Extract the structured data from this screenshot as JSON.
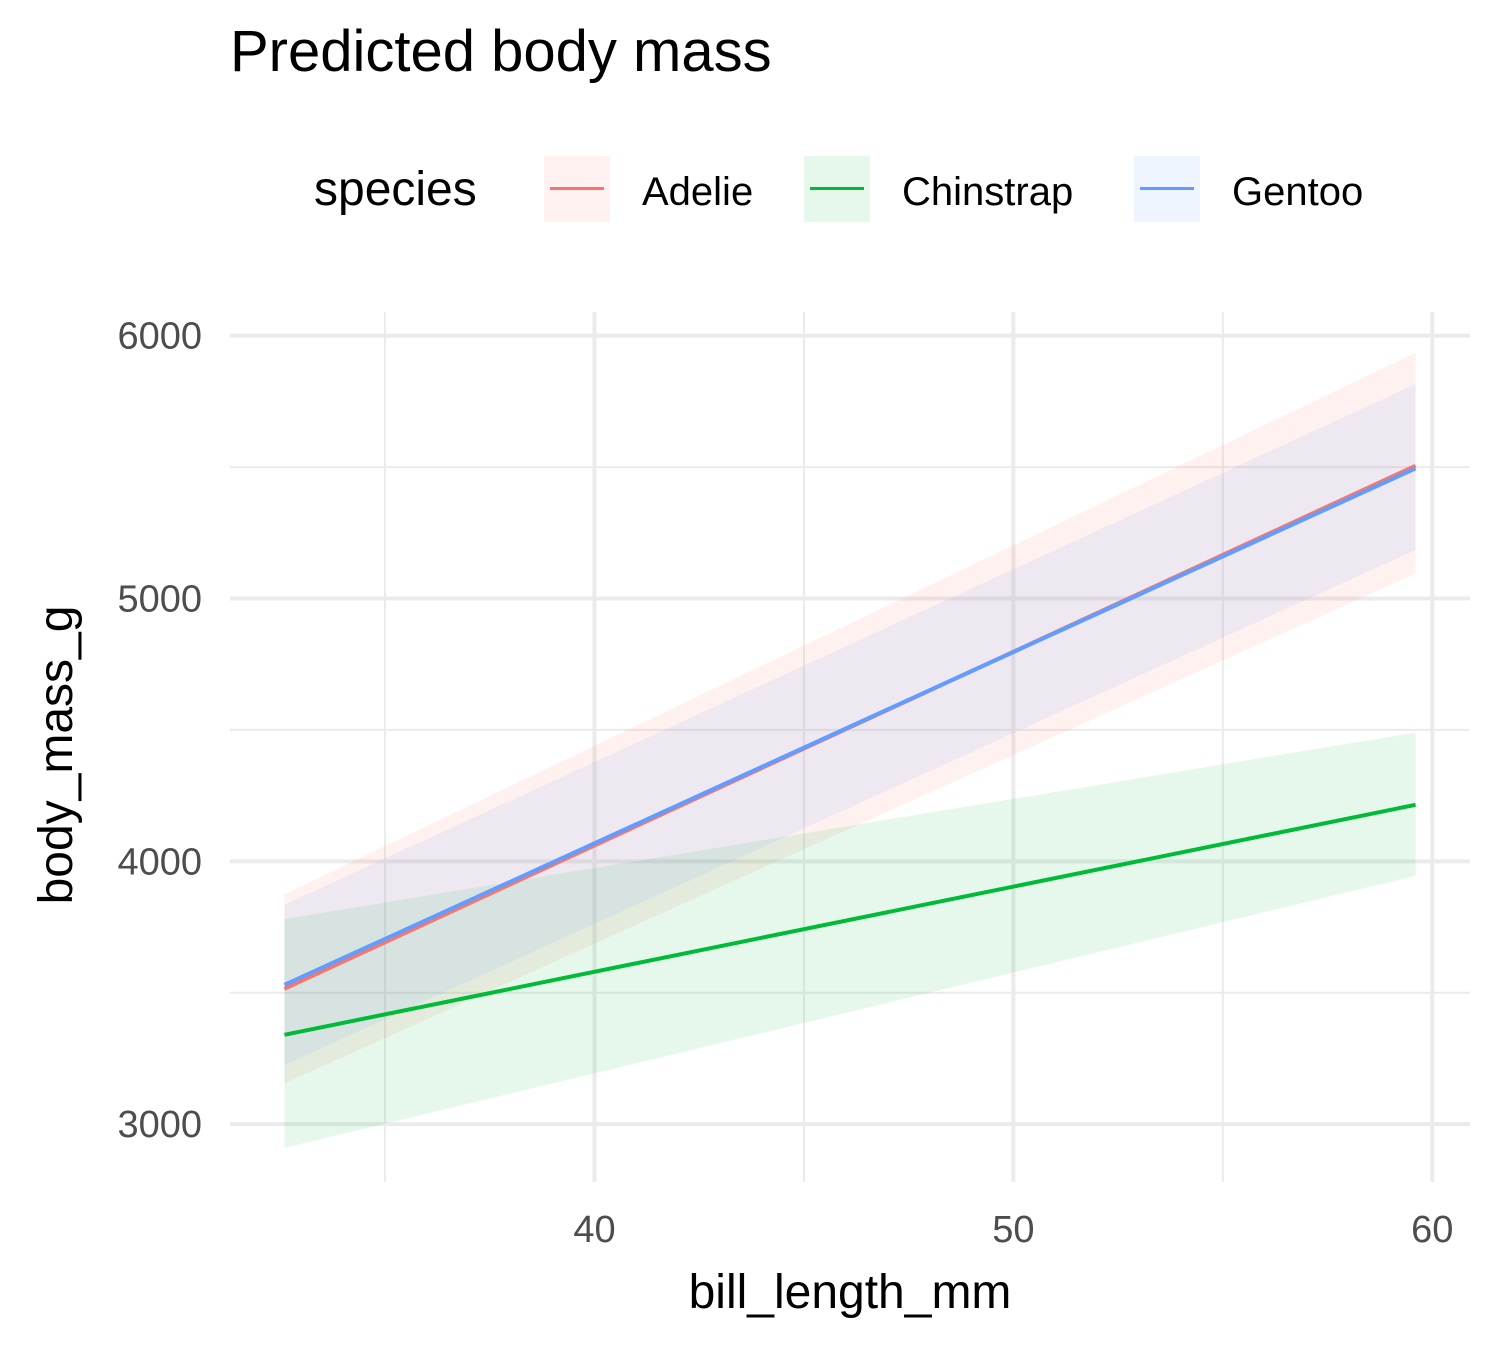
{
  "chart_data": {
    "type": "line",
    "title": "Predicted body mass",
    "xlabel": "bill_length_mm",
    "ylabel": "body_mass_g",
    "xlim": [
      31.3,
      60.9
    ],
    "ylim": [
      2780,
      6090
    ],
    "x_ticks": [
      40,
      50,
      60
    ],
    "x_minor_ticks": [
      35,
      45,
      55
    ],
    "y_ticks": [
      3000,
      4000,
      5000,
      6000
    ],
    "y_minor_ticks": [
      3500,
      4500,
      5500
    ],
    "grid": true,
    "legend": {
      "title": "species",
      "position": "top"
    },
    "series": [
      {
        "name": "Adelie",
        "color": "#F8766D",
        "x": [
          32.6,
          59.6
        ],
        "y": [
          3515,
          5505
        ],
        "band_lower": [
          3155,
          5095
        ],
        "band_upper": [
          3875,
          5935
        ]
      },
      {
        "name": "Chinstrap",
        "color": "#00BA38",
        "x": [
          32.6,
          59.6
        ],
        "y": [
          3340,
          4215
        ],
        "band_lower": [
          2910,
          3945
        ],
        "band_upper": [
          3780,
          4490
        ]
      },
      {
        "name": "Gentoo",
        "color": "#619CFF",
        "x": [
          32.6,
          59.6
        ],
        "y": [
          3530,
          5495
        ],
        "band_lower": [
          3225,
          5185
        ],
        "band_upper": [
          3835,
          5815
        ]
      }
    ]
  }
}
